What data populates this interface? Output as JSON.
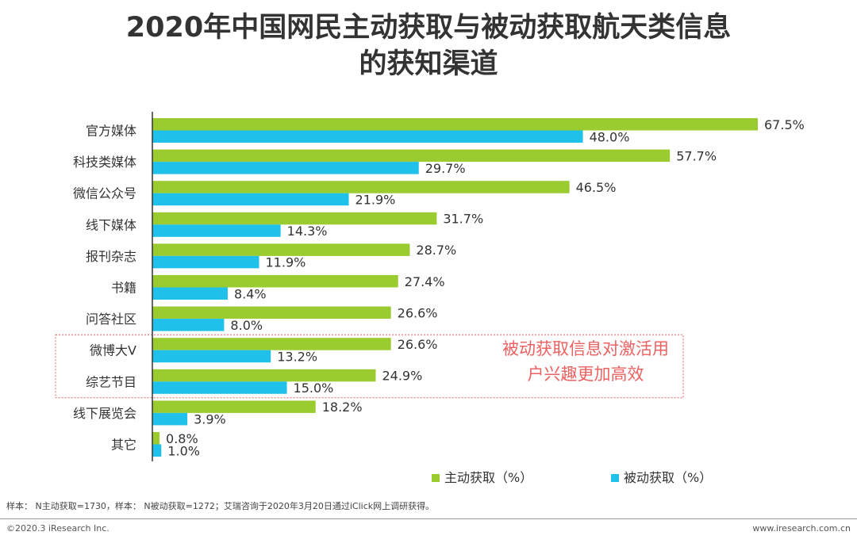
{
  "colors": {
    "active": "#9acb2f",
    "passive": "#1fc1ea",
    "axis": "#333333",
    "highlight": "#ec6161"
  },
  "chart_data": {
    "type": "bar",
    "orientation": "horizontal",
    "title_lines": [
      "2020年中国网民主动获取与被动获取航天类信息",
      "的获知渠道"
    ],
    "categories": [
      "官方媒体",
      "科技类媒体",
      "微信公众号",
      "线下媒体",
      "报刊杂志",
      "书籍",
      "问答社区",
      "微博大V",
      "综艺节目",
      "线下展览会",
      "其它"
    ],
    "series": [
      {
        "name": "主动获取（%）",
        "values": [
          67.5,
          57.7,
          46.5,
          31.7,
          28.7,
          27.4,
          26.6,
          26.6,
          24.9,
          18.2,
          0.8
        ]
      },
      {
        "name": "被动获取（%）",
        "values": [
          48.0,
          29.7,
          21.9,
          14.3,
          11.9,
          8.4,
          8.0,
          13.2,
          15.0,
          3.9,
          1.0
        ]
      }
    ],
    "value_suffix": "%",
    "xlim": [
      0,
      70
    ],
    "legend_position": "bottom-right",
    "annotation": {
      "lines": [
        "被动获取信息对激活用",
        "户兴趣更加高效"
      ],
      "highlighted_categories": [
        "微博大V",
        "综艺节目"
      ]
    }
  },
  "footnote": "样本： N主动获取=1730，样本： N被动获取=1272；艾瑞咨询于2020年3月20日通过iClick网上调研获得。",
  "copyright": "©2020.3 iResearch Inc.",
  "website": "www.iresearch.com.cn"
}
